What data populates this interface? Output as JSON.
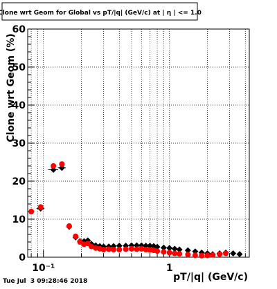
{
  "chart_data": {
    "type": "scatter",
    "title": "Clone wrt Geom for Global vs pT/|q| (GeV/c) at | η | <= 1.0",
    "xlabel": "pT/|q| (GeV/c)",
    "ylabel": "Clone wrt Geom (%)",
    "xscale": "log",
    "xlim": [
      0.075,
      4.3
    ],
    "ylim": [
      0,
      60
    ],
    "yticks": [
      0,
      10,
      20,
      30,
      40,
      50,
      60
    ],
    "xtick_labels": [
      {
        "value": 0.1,
        "text": "10⁻¹"
      },
      {
        "value": 1,
        "text": "1"
      }
    ],
    "grid": true,
    "legend": "none",
    "footer": "Tue Jul  3 09:28:46 2018",
    "series": [
      {
        "color": "#000000",
        "marker": "diamond",
        "points": [
          {
            "x": 0.08,
            "y": 12.0,
            "xerr": 0.004
          },
          {
            "x": 0.095,
            "y": 12.8,
            "xerr": 0.007
          },
          {
            "x": 0.12,
            "y": 23.0,
            "xerr": 0.011
          },
          {
            "x": 0.14,
            "y": 23.5,
            "xerr": 0.01
          },
          {
            "x": 0.16,
            "y": 8.0
          },
          {
            "x": 0.18,
            "y": 5.2
          },
          {
            "x": 0.195,
            "y": 4.2
          },
          {
            "x": 0.21,
            "y": 4.2
          },
          {
            "x": 0.225,
            "y": 4.4
          },
          {
            "x": 0.24,
            "y": 3.5
          },
          {
            "x": 0.26,
            "y": 3.1
          },
          {
            "x": 0.28,
            "y": 2.9
          },
          {
            "x": 0.3,
            "y": 2.8
          },
          {
            "x": 0.33,
            "y": 2.8
          },
          {
            "x": 0.36,
            "y": 2.9
          },
          {
            "x": 0.4,
            "y": 3.0
          },
          {
            "x": 0.45,
            "y": 3.0
          },
          {
            "x": 0.5,
            "y": 3.1
          },
          {
            "x": 0.55,
            "y": 3.1
          },
          {
            "x": 0.6,
            "y": 3.1
          },
          {
            "x": 0.65,
            "y": 3.0
          },
          {
            "x": 0.7,
            "y": 3.0
          },
          {
            "x": 0.75,
            "y": 2.9
          },
          {
            "x": 0.8,
            "y": 2.7
          },
          {
            "x": 0.9,
            "y": 2.5
          },
          {
            "x": 1.0,
            "y": 2.4
          },
          {
            "x": 1.1,
            "y": 2.2
          },
          {
            "x": 1.2,
            "y": 2.0
          },
          {
            "x": 1.4,
            "y": 1.8
          },
          {
            "x": 1.6,
            "y": 1.5
          },
          {
            "x": 1.8,
            "y": 1.2
          },
          {
            "x": 2.0,
            "y": 1.0
          },
          {
            "x": 2.2,
            "y": 0.8
          },
          {
            "x": 2.5,
            "y": 1.0
          },
          {
            "x": 2.8,
            "y": 1.2
          },
          {
            "x": 3.2,
            "y": 1.0
          },
          {
            "x": 3.6,
            "y": 0.8
          }
        ]
      },
      {
        "color": "#ff0000",
        "marker": "circle",
        "points": [
          {
            "x": 0.08,
            "y": 12.0
          },
          {
            "x": 0.095,
            "y": 13.2
          },
          {
            "x": 0.12,
            "y": 24.0
          },
          {
            "x": 0.14,
            "y": 24.5
          },
          {
            "x": 0.16,
            "y": 8.2
          },
          {
            "x": 0.18,
            "y": 5.5
          },
          {
            "x": 0.195,
            "y": 4.0
          },
          {
            "x": 0.21,
            "y": 3.4
          },
          {
            "x": 0.225,
            "y": 3.6
          },
          {
            "x": 0.24,
            "y": 2.8
          },
          {
            "x": 0.26,
            "y": 2.4
          },
          {
            "x": 0.28,
            "y": 2.2
          },
          {
            "x": 0.3,
            "y": 2.0
          },
          {
            "x": 0.33,
            "y": 2.1
          },
          {
            "x": 0.36,
            "y": 2.0
          },
          {
            "x": 0.4,
            "y": 2.0
          },
          {
            "x": 0.45,
            "y": 2.1
          },
          {
            "x": 0.5,
            "y": 2.2
          },
          {
            "x": 0.55,
            "y": 2.1
          },
          {
            "x": 0.6,
            "y": 2.2
          },
          {
            "x": 0.65,
            "y": 2.0
          },
          {
            "x": 0.7,
            "y": 1.9
          },
          {
            "x": 0.75,
            "y": 1.8
          },
          {
            "x": 0.8,
            "y": 1.6
          },
          {
            "x": 0.9,
            "y": 1.4
          },
          {
            "x": 1.0,
            "y": 1.2
          },
          {
            "x": 1.1,
            "y": 1.0
          },
          {
            "x": 1.2,
            "y": 0.9
          },
          {
            "x": 1.4,
            "y": 0.7
          },
          {
            "x": 1.6,
            "y": 0.5
          },
          {
            "x": 1.8,
            "y": 0.4
          },
          {
            "x": 2.0,
            "y": 0.5
          },
          {
            "x": 2.2,
            "y": 0.6
          },
          {
            "x": 2.5,
            "y": 0.8
          },
          {
            "x": 2.8,
            "y": 1.0
          }
        ]
      }
    ]
  }
}
